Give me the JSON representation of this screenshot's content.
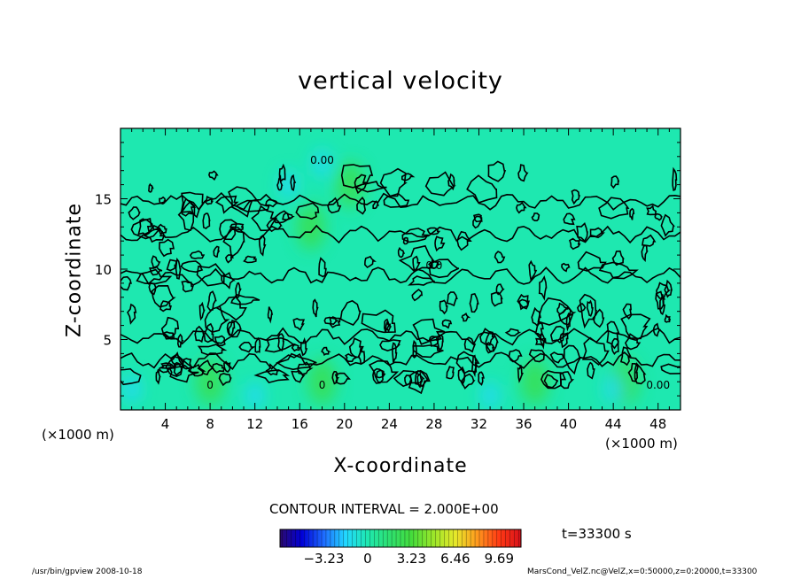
{
  "chart_data": {
    "type": "heatmap",
    "title": "vertical velocity",
    "xlabel": "X-coordinate",
    "ylabel": "Z-coordinate",
    "x_unit": "(×1000 m)",
    "y_unit": "",
    "xlim": [
      0,
      50
    ],
    "ylim": [
      0,
      20
    ],
    "x_ticks": [
      4,
      8,
      12,
      16,
      20,
      24,
      28,
      32,
      36,
      40,
      44,
      48
    ],
    "y_ticks": [
      5,
      10,
      15
    ],
    "contour_interval": "CONTOUR INTERVAL = 2.000E+00",
    "time": "t=33300 s",
    "colorbar": {
      "tick_labels": [
        "−3.23",
        "0",
        "3.23",
        "6.46",
        "9.69"
      ],
      "tick_values": [
        -3.23,
        0,
        3.23,
        6.46,
        9.69
      ],
      "range": [
        -6.46,
        11.3
      ],
      "colors": [
        "#2b0a6e",
        "#0000d8",
        "#1e6cff",
        "#22d8ff",
        "#1ee8b0",
        "#2ee070",
        "#44dc3c",
        "#9be62a",
        "#e6e82a",
        "#ff9a1e",
        "#ff3a14",
        "#d8101a"
      ]
    },
    "field_summary": {
      "background_value": 0,
      "high_regions": [
        {
          "x": 17,
          "z": 13,
          "note": "green updraft column"
        },
        {
          "x": 20.5,
          "z": 16
        },
        {
          "x": 8,
          "z": 2
        },
        {
          "x": 18,
          "z": 2
        },
        {
          "x": 37,
          "z": 2
        },
        {
          "x": 45,
          "z": 2
        }
      ],
      "low_regions": [
        {
          "x": 18,
          "z": 17.5
        },
        {
          "x": 15,
          "z": 16
        },
        {
          "x": 1,
          "z": 1.5
        },
        {
          "x": 12,
          "z": 1
        },
        {
          "x": 33,
          "z": 1
        },
        {
          "x": 44,
          "z": 1.5
        }
      ],
      "contour_labels": [
        {
          "x": 18,
          "z": 17.5,
          "text": "0.00"
        },
        {
          "x": 8,
          "z": 1.5,
          "text": "0"
        },
        {
          "x": 18,
          "z": 1.5,
          "text": "0"
        },
        {
          "x": 48,
          "z": 1.5,
          "text": "0.00"
        },
        {
          "x": 28,
          "z": 10,
          "text": "0.0"
        }
      ]
    }
  },
  "footer": {
    "left": "/usr/bin/gpview   2008-10-18",
    "right": "MarsCond_VelZ.nc@VelZ,x=0:50000,z=0:20000,t=33300"
  }
}
